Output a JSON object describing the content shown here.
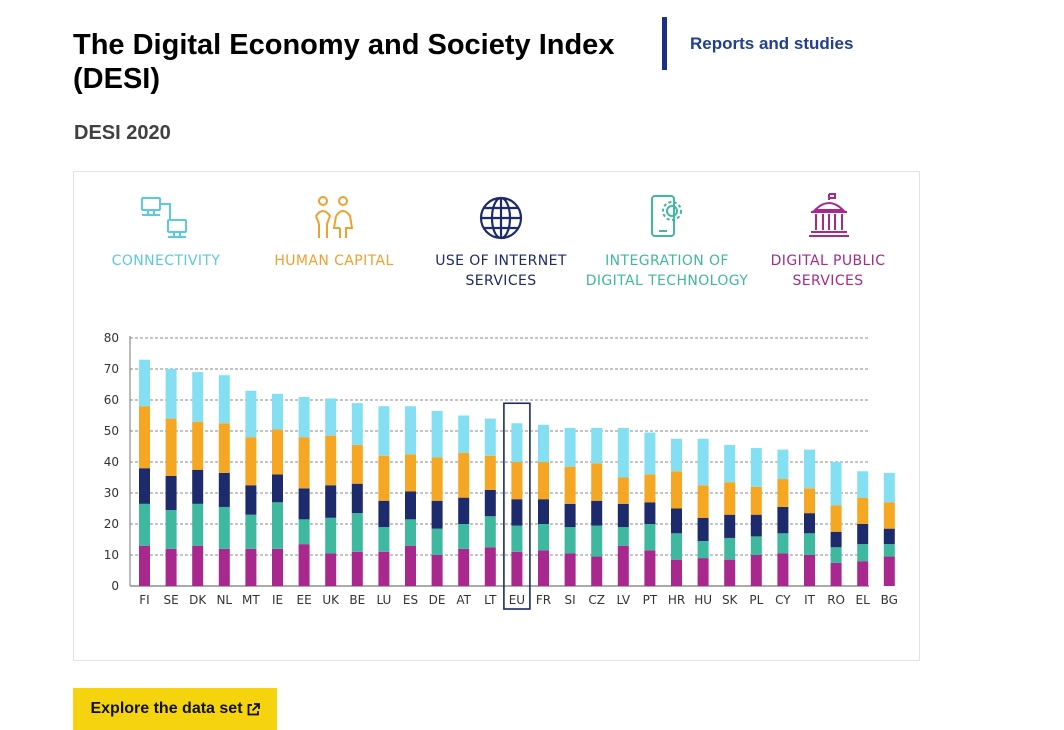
{
  "header": {
    "title": "The Digital Economy and Society Index (DESI)",
    "side_link": "Reports and studies"
  },
  "section": {
    "title": "DESI 2020"
  },
  "legend": [
    {
      "key": "connectivity",
      "lines": [
        "CONNECTIVITY"
      ],
      "color": "#85dff2",
      "text_color": "#5bc9de",
      "icon": "network-computers-icon"
    },
    {
      "key": "human_capital",
      "lines": [
        "HUMAN CAPITAL"
      ],
      "color": "#f5a623",
      "text_color": "#f0a030",
      "icon": "two-people-icon"
    },
    {
      "key": "internet_use",
      "lines": [
        "USE OF INTERNET",
        "SERVICES"
      ],
      "color": "#1d2a6b",
      "text_color": "#1d2a6b",
      "icon": "globe-icon"
    },
    {
      "key": "digital_tech",
      "lines": [
        "INTEGRATION OF",
        "DIGITAL TECHNOLOGY"
      ],
      "color": "#3fb8a0",
      "text_color": "#3fb8a0",
      "icon": "phone-gear-icon"
    },
    {
      "key": "public_services",
      "lines": [
        "DIGITAL PUBLIC",
        "SERVICES"
      ],
      "color": "#a8288e",
      "text_color": "#a8288e",
      "icon": "government-building-icon"
    }
  ],
  "chart_data": {
    "type": "bar",
    "stacked": true,
    "title": "DESI 2020",
    "ylim": [
      0,
      80
    ],
    "yticks": [
      0,
      10,
      20,
      30,
      40,
      50,
      60,
      70,
      80
    ],
    "highlight": "EU",
    "categories": [
      "FI",
      "SE",
      "DK",
      "NL",
      "MT",
      "IE",
      "EE",
      "UK",
      "BE",
      "LU",
      "ES",
      "DE",
      "AT",
      "LT",
      "EU",
      "FR",
      "SI",
      "CZ",
      "LV",
      "PT",
      "HR",
      "HU",
      "SK",
      "PL",
      "CY",
      "IT",
      "RO",
      "EL",
      "BG"
    ],
    "series": [
      {
        "name": "Digital public services",
        "key": "public_services",
        "values": [
          13,
          12,
          13,
          12,
          12,
          12,
          13.5,
          10.5,
          11,
          11,
          13,
          10,
          12,
          12.5,
          11,
          11.5,
          10.5,
          9.5,
          13,
          11.5,
          8.5,
          9,
          8.5,
          10,
          10.5,
          10,
          7.5,
          8,
          9.5
        ]
      },
      {
        "name": "Integration of digital technology",
        "key": "digital_tech",
        "values": [
          13.5,
          12.5,
          13.5,
          13.5,
          11,
          15,
          8,
          11.5,
          12.5,
          8,
          8.5,
          8.5,
          8,
          10,
          8.5,
          8.5,
          8.5,
          10,
          6,
          8.5,
          8.5,
          5.5,
          7,
          6,
          6.5,
          7,
          5,
          5.5,
          4
        ]
      },
      {
        "name": "Use of internet services",
        "key": "internet_use",
        "values": [
          11.5,
          11,
          11,
          11,
          9.5,
          9,
          10,
          10.5,
          9.5,
          8.5,
          9,
          9,
          8.5,
          8.5,
          8.5,
          8,
          7.5,
          8,
          7.5,
          7,
          8,
          7.5,
          7.5,
          7,
          8.5,
          6.5,
          5,
          6.5,
          5
        ]
      },
      {
        "name": "Human capital",
        "key": "human_capital",
        "values": [
          20,
          18.5,
          15.5,
          16,
          15.5,
          14.5,
          16.5,
          16,
          12.5,
          14.5,
          12,
          14,
          14.5,
          11,
          12,
          12,
          12,
          12,
          8.5,
          9,
          12,
          10.5,
          10.5,
          9,
          9,
          8,
          8.5,
          8.5,
          8.5
        ]
      },
      {
        "name": "Connectivity",
        "key": "connectivity",
        "values": [
          15,
          16,
          16,
          15.5,
          15,
          11.5,
          13,
          12,
          13.5,
          16,
          15.5,
          15,
          12,
          12,
          12.5,
          12,
          12.5,
          11.5,
          16,
          13.5,
          10.5,
          15,
          12,
          12.5,
          9.5,
          12.5,
          14,
          8.5,
          9.5
        ]
      }
    ]
  },
  "cta": {
    "label": "Explore the data set"
  }
}
